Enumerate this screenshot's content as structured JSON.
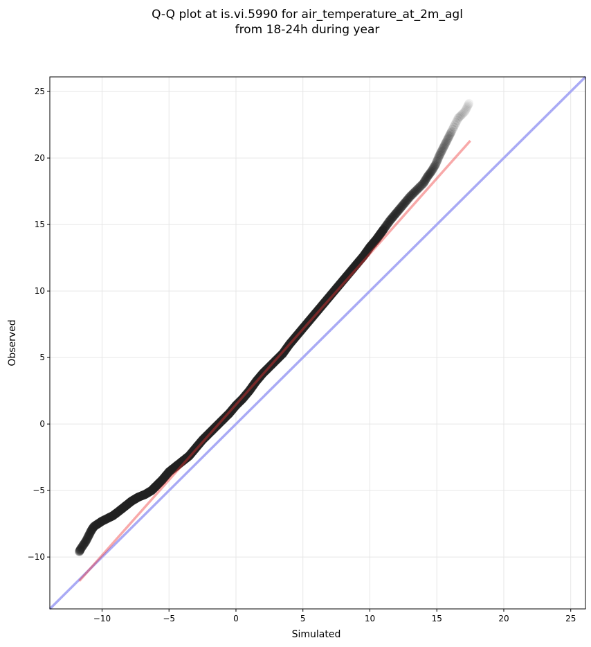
{
  "chart_data": {
    "type": "scatter",
    "title": [
      "Q-Q plot at is.vi.5990 for air_temperature_at_2m_agl",
      "from 18-24h during year"
    ],
    "xlabel": "Simulated",
    "ylabel": "Observed",
    "xlim": [
      -13.9,
      26.1
    ],
    "ylim": [
      -13.9,
      26.1
    ],
    "xticks": [
      -10,
      -5,
      0,
      5,
      10,
      15,
      20,
      25
    ],
    "yticks": [
      -10,
      -5,
      0,
      5,
      10,
      15,
      20,
      25
    ],
    "xtick_labels": [
      "−10",
      "−5",
      "0",
      "5",
      "10",
      "15",
      "20",
      "25"
    ],
    "ytick_labels": [
      "−10",
      "−5",
      "0",
      "5",
      "10",
      "15",
      "20",
      "25"
    ],
    "grid": true,
    "colors": {
      "points": "#222222",
      "fit_line": "#f4a7a7",
      "identity_line": "#a9aaf5",
      "grid": "#e6e6e6"
    },
    "quantiles": {
      "sim": [
        -11.7,
        -11.6,
        -11.4,
        -11.2,
        -11.0,
        -10.8,
        -10.6,
        -10.3,
        -10.0,
        -9.6,
        -9.2,
        -8.8,
        -8.3,
        -7.8,
        -7.3,
        -6.8,
        -6.3,
        -5.9,
        -5.5,
        -5.0,
        -4.5,
        -4.0,
        -3.5,
        -3.0,
        -2.5,
        -2.0,
        -1.5,
        -1.0,
        -0.5,
        0.0,
        0.5,
        1.0,
        1.5,
        2.0,
        2.5,
        3.0,
        3.5,
        4.0,
        4.5,
        5.0,
        5.5,
        6.0,
        6.5,
        7.0,
        7.5,
        8.0,
        8.5,
        9.0,
        9.5,
        10.0,
        10.5,
        11.0,
        11.5,
        12.0,
        12.5,
        13.0,
        13.5,
        14.0,
        14.3,
        14.6,
        14.9,
        15.2,
        15.5,
        15.8,
        16.1,
        16.6,
        17.1,
        17.4
      ],
      "obs": [
        -9.6,
        -9.4,
        -9.1,
        -8.8,
        -8.4,
        -8.0,
        -7.7,
        -7.5,
        -7.3,
        -7.1,
        -6.9,
        -6.6,
        -6.2,
        -5.8,
        -5.5,
        -5.3,
        -5.0,
        -4.6,
        -4.2,
        -3.6,
        -3.2,
        -2.8,
        -2.4,
        -1.8,
        -1.2,
        -0.7,
        -0.2,
        0.3,
        0.8,
        1.4,
        1.9,
        2.5,
        3.2,
        3.8,
        4.3,
        4.8,
        5.3,
        6.0,
        6.6,
        7.2,
        7.8,
        8.4,
        9.0,
        9.6,
        10.2,
        10.8,
        11.4,
        12.0,
        12.6,
        13.3,
        13.9,
        14.6,
        15.3,
        15.9,
        16.5,
        17.1,
        17.6,
        18.1,
        18.6,
        19.0,
        19.5,
        20.2,
        20.8,
        21.4,
        22.0,
        23.0,
        23.5,
        24.1
      ]
    },
    "fit_line": {
      "x": [
        -11.7,
        17.5
      ],
      "y": [
        -11.8,
        21.3
      ]
    },
    "identity_line": {
      "x": [
        -13.9,
        26.1
      ],
      "y": [
        -13.9,
        26.1
      ]
    }
  }
}
